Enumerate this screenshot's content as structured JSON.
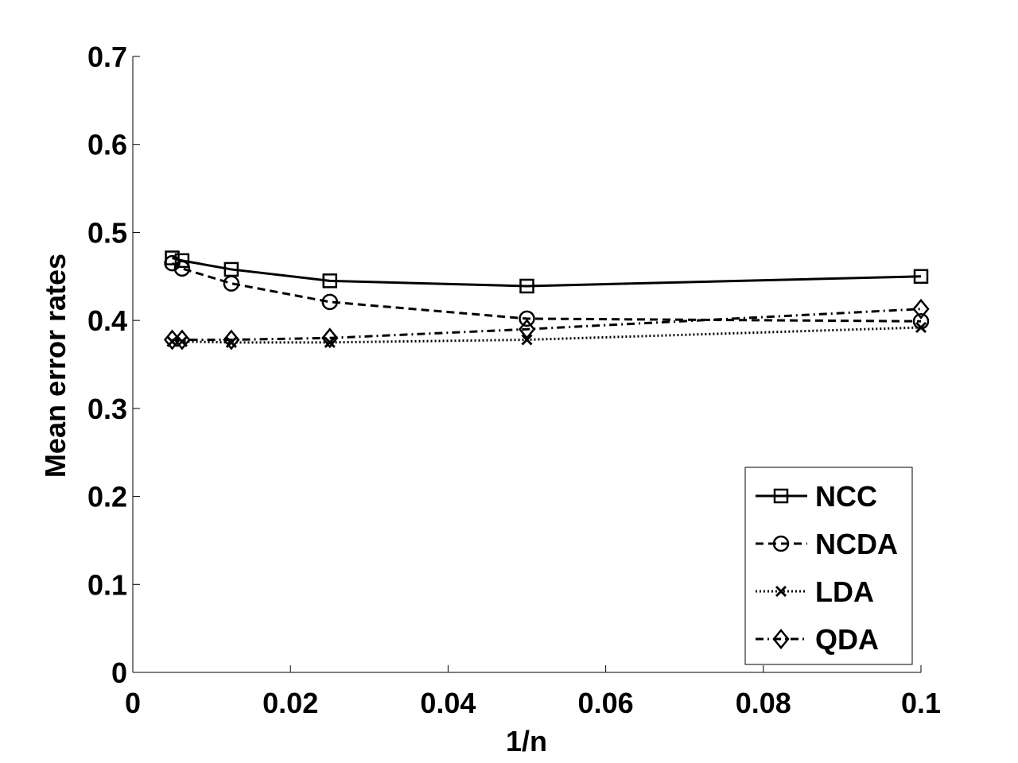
{
  "chart_data": {
    "type": "line",
    "title": "",
    "xlabel": "1/n",
    "ylabel": "Mean error rates",
    "xlim": [
      0,
      0.1
    ],
    "ylim": [
      0,
      0.7
    ],
    "xticks": [
      0,
      0.02,
      0.04,
      0.06,
      0.08,
      0.1
    ],
    "xtick_labels": [
      "0",
      "0.02",
      "0.04",
      "0.06",
      "0.08",
      "0.1"
    ],
    "yticks": [
      0,
      0.1,
      0.2,
      0.3,
      0.4,
      0.5,
      0.6,
      0.7
    ],
    "ytick_labels": [
      "0",
      "0.1",
      "0.2",
      "0.3",
      "0.4",
      "0.5",
      "0.6",
      "0.7"
    ],
    "grid": false,
    "legend_position": "bottom-right",
    "x": [
      0.005,
      0.00625,
      0.0125,
      0.025,
      0.05,
      0.1
    ],
    "series": [
      {
        "name": "NCC",
        "marker": "square",
        "dash": "solid",
        "values": [
          0.471,
          0.468,
          0.458,
          0.445,
          0.439,
          0.45
        ]
      },
      {
        "name": "NCDA",
        "marker": "circle",
        "dash": "dashed",
        "values": [
          0.465,
          0.459,
          0.442,
          0.421,
          0.402,
          0.399
        ]
      },
      {
        "name": "LDA",
        "marker": "x",
        "dash": "dotted",
        "values": [
          0.376,
          0.376,
          0.375,
          0.375,
          0.378,
          0.392
        ]
      },
      {
        "name": "QDA",
        "marker": "diamond",
        "dash": "dash-dot",
        "values": [
          0.378,
          0.378,
          0.378,
          0.38,
          0.39,
          0.413
        ]
      }
    ]
  }
}
